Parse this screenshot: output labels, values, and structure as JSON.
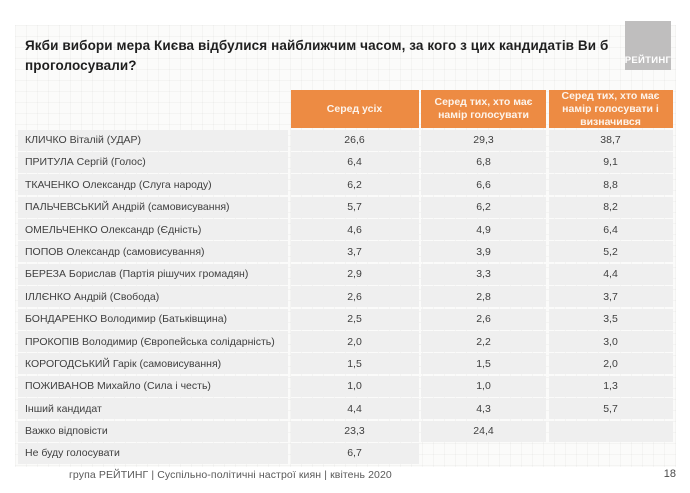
{
  "title": "Якби вибори мера Києва відбулися найближчим часом, за кого з цих кандидатів Ви б проголосували?",
  "logo_text": "РЕЙТИНГ",
  "colors": {
    "accent_orange": "#ED8B43",
    "row_gray": "#EFEFEF",
    "logo_gray": "#BFBEBE"
  },
  "chart_data": {
    "type": "table",
    "title": "Якби вибори мера Києва відбулися найближчим часом, за кого з цих кандидатів Ви б проголосували?",
    "unit": "%",
    "decimal_separator": ",",
    "columns": [
      "Серед усіх",
      "Серед тих, хто має намір голосувати",
      "Серед тих, хто має намір голосувати і визначився"
    ],
    "rows": [
      {
        "label": "КЛИЧКО Віталій (УДАР)",
        "values": [
          26.6,
          29.3,
          38.7
        ]
      },
      {
        "label": "ПРИТУЛА Сергій (Голос)",
        "values": [
          6.4,
          6.8,
          9.1
        ]
      },
      {
        "label": "ТКАЧЕНКО Олександр (Слуга народу)",
        "values": [
          6.2,
          6.6,
          8.8
        ]
      },
      {
        "label": "ПАЛЬЧЕВСЬКИЙ Андрій (самовисування)",
        "values": [
          5.7,
          6.2,
          8.2
        ]
      },
      {
        "label": "ОМЕЛЬЧЕНКО Олександр (Єдність)",
        "values": [
          4.6,
          4.9,
          6.4
        ]
      },
      {
        "label": "ПОПОВ Олександр (самовисування)",
        "values": [
          3.7,
          3.9,
          5.2
        ]
      },
      {
        "label": "БЕРЕЗА Борислав (Партія рішучих громадян)",
        "values": [
          2.9,
          3.3,
          4.4
        ]
      },
      {
        "label": "ІЛЛЄНКО Андрій (Свобода)",
        "values": [
          2.6,
          2.8,
          3.7
        ]
      },
      {
        "label": "БОНДАРЕНКО Володимир (Батьківщина)",
        "values": [
          2.5,
          2.6,
          3.5
        ]
      },
      {
        "label": "ПРОКОПІВ Володимир (Європейська солідарність)",
        "values": [
          2.0,
          2.2,
          3.0
        ]
      },
      {
        "label": "КОРОГОДСЬКИЙ Гарік (самовисування)",
        "values": [
          1.5,
          1.5,
          2.0
        ]
      },
      {
        "label": "ПОЖИВАНОВ Михайло (Сила і честь)",
        "values": [
          1.0,
          1.0,
          1.3
        ]
      },
      {
        "label": "Інший кандидат",
        "values": [
          4.4,
          4.3,
          5.7
        ]
      },
      {
        "label": "Важко відповісти",
        "values": [
          23.3,
          24.4,
          ""
        ]
      },
      {
        "label": "Не буду голосувати",
        "values": [
          6.7,
          null,
          null
        ]
      }
    ]
  },
  "footer": {
    "source_line": "група РЕЙТИНГ | Суспільно-політичні настрої киян | квітень 2020",
    "page_number": "18"
  }
}
